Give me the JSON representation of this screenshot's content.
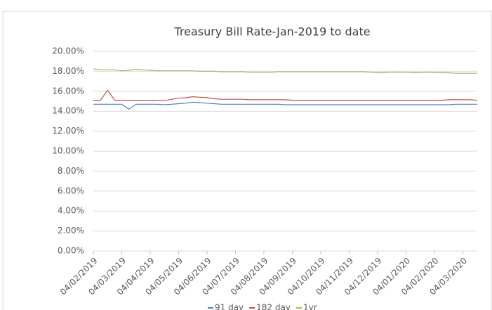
{
  "chart_data": {
    "type": "line",
    "title": "Treasury Bill Rate-Jan-2019 to date",
    "categories": [
      "04/02/2019",
      null,
      null,
      null,
      "04/03/2019",
      null,
      null,
      null,
      "04/04/2019",
      null,
      null,
      null,
      "04/05/2019",
      null,
      null,
      null,
      "04/06/2019",
      null,
      null,
      null,
      "04/07/2019",
      null,
      null,
      null,
      "04/08/2019",
      null,
      null,
      null,
      "04/09/2019",
      null,
      null,
      null,
      "04/10/2019",
      null,
      null,
      null,
      "04/11/2019",
      null,
      null,
      null,
      "04/12/2019",
      null,
      null,
      null,
      "04/01/2020",
      null,
      null,
      null,
      "04/02/2020",
      null,
      null,
      null,
      "04/03/2020",
      null,
      null
    ],
    "series": [
      {
        "name": "91 day",
        "color": "#4e81bd",
        "values": [
          14.7,
          14.7,
          14.7,
          14.7,
          14.7,
          14.2,
          14.7,
          14.7,
          14.7,
          14.7,
          14.65,
          14.7,
          14.75,
          14.8,
          14.9,
          14.85,
          14.8,
          14.75,
          14.7,
          14.7,
          14.7,
          14.7,
          14.7,
          14.7,
          14.7,
          14.7,
          14.7,
          14.65,
          14.65,
          14.65,
          14.65,
          14.65,
          14.65,
          14.65,
          14.65,
          14.65,
          14.65,
          14.65,
          14.65,
          14.65,
          14.65,
          14.65,
          14.65,
          14.65,
          14.65,
          14.65,
          14.65,
          14.65,
          14.65,
          14.65,
          14.65,
          14.7,
          14.7,
          14.7,
          14.7
        ]
      },
      {
        "name": "182 day",
        "color": "#c0504d",
        "values": [
          15.1,
          15.1,
          16.1,
          15.1,
          15.1,
          15.1,
          15.1,
          15.1,
          15.1,
          15.1,
          15.05,
          15.2,
          15.3,
          15.35,
          15.45,
          15.4,
          15.35,
          15.25,
          15.2,
          15.2,
          15.2,
          15.2,
          15.15,
          15.15,
          15.15,
          15.15,
          15.15,
          15.15,
          15.1,
          15.1,
          15.1,
          15.1,
          15.1,
          15.1,
          15.1,
          15.1,
          15.1,
          15.1,
          15.1,
          15.1,
          15.1,
          15.1,
          15.1,
          15.1,
          15.1,
          15.1,
          15.1,
          15.1,
          15.1,
          15.1,
          15.15,
          15.15,
          15.15,
          15.15,
          15.1
        ]
      },
      {
        "name": "1yr",
        "color": "#9bbb59",
        "values": [
          18.25,
          18.15,
          18.15,
          18.15,
          18.05,
          18.1,
          18.2,
          18.15,
          18.1,
          18.05,
          18.05,
          18.05,
          18.05,
          18.05,
          18.05,
          18.0,
          18.0,
          18.0,
          17.95,
          17.95,
          17.95,
          17.95,
          17.9,
          17.9,
          17.9,
          17.9,
          17.95,
          17.95,
          17.95,
          17.95,
          17.95,
          17.95,
          17.95,
          17.95,
          17.95,
          17.95,
          17.95,
          17.95,
          17.95,
          17.9,
          17.85,
          17.85,
          17.9,
          17.9,
          17.9,
          17.85,
          17.85,
          17.9,
          17.85,
          17.85,
          17.85,
          17.8,
          17.8,
          17.8,
          17.8
        ]
      }
    ],
    "ylim": [
      0,
      20
    ],
    "yticks": [
      {
        "value": 0,
        "label": "0.00%"
      },
      {
        "value": 2,
        "label": "2.00%"
      },
      {
        "value": 4,
        "label": "4.00%"
      },
      {
        "value": 6,
        "label": "6.00%"
      },
      {
        "value": 8,
        "label": "8.00%"
      },
      {
        "value": 10,
        "label": "10.00%"
      },
      {
        "value": 12,
        "label": "12.00%"
      },
      {
        "value": 14,
        "label": "14.00%"
      },
      {
        "value": 16,
        "label": "16.00%"
      },
      {
        "value": 18,
        "label": "18.00%"
      },
      {
        "value": 20,
        "label": "20.00%"
      }
    ],
    "grid": true,
    "legend": "bottom"
  }
}
